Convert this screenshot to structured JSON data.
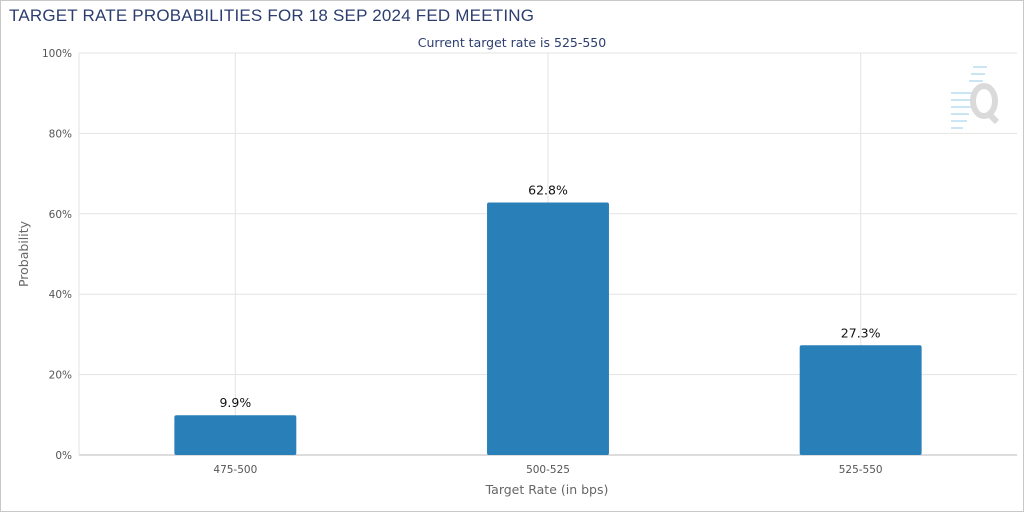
{
  "header": {
    "title": "TARGET RATE PROBABILITIES FOR 18 SEP 2024 FED MEETING"
  },
  "chart_data": {
    "type": "bar",
    "subtitle": "Current target rate is 525-550",
    "categories": [
      "475-500",
      "500-525",
      "525-550"
    ],
    "values": [
      9.9,
      62.8,
      27.3
    ],
    "value_labels": [
      "9.9%",
      "62.8%",
      "27.3%"
    ],
    "xlabel": "Target Rate (in bps)",
    "ylabel": "Probability",
    "ylim": [
      0,
      100
    ],
    "yticks": [
      0,
      20,
      40,
      60,
      80,
      100
    ],
    "ytick_labels": [
      "0%",
      "20%",
      "40%",
      "60%",
      "80%",
      "100%"
    ],
    "grid": true,
    "bar_color": "#2980b9",
    "watermark_icon": "q-logo-icon"
  }
}
